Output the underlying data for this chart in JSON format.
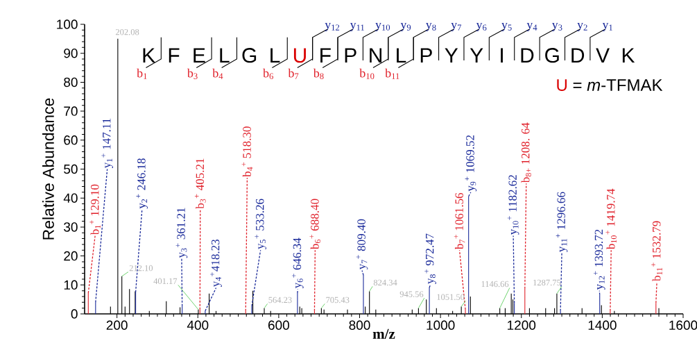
{
  "chart_data": {
    "type": "bar",
    "xlabel": "m/z",
    "ylabel": "Relative Abundance",
    "xlim": [
      120,
      1600
    ],
    "xticks": [
      200,
      400,
      600,
      800,
      1000,
      1200,
      1400,
      1600
    ],
    "ylim": [
      0,
      100
    ],
    "yticks": [
      0,
      10,
      20,
      30,
      40,
      50,
      60,
      70,
      80,
      90,
      100
    ],
    "series": [
      {
        "color": "#000000",
        "x": [
          184,
          202.08,
          212.1,
          220,
          231,
          245,
          280,
          322,
          356,
          401.17,
          428,
          445,
          536,
          564.23,
          580,
          652,
          657,
          705.43,
          712,
          770,
          814,
          824.34,
          840,
          930,
          945.56,
          965,
          990,
          1030,
          1051.5,
          1074,
          1146.66,
          1160,
          1175,
          1179,
          1220,
          1260,
          1282,
          1287.75,
          1350,
          1398,
          1430,
          1540
        ],
        "values": [
          2.5,
          95,
          13,
          2.5,
          8.6,
          7.8,
          1,
          4.4,
          2.3,
          1.5,
          7,
          1,
          8,
          2,
          1,
          2.5,
          2,
          2,
          1.5,
          1.5,
          2.5,
          7.8,
          1.5,
          1.5,
          2,
          5,
          2,
          1,
          2.5,
          6,
          2,
          2,
          7,
          5,
          2,
          2,
          2,
          7,
          2,
          3,
          1,
          2
        ]
      },
      {
        "color": "#1a2a9a",
        "x": [
          147.11,
          246.18,
          361.21,
          418.23,
          533.26,
          646.34,
          809.4,
          972.47,
          1069.52,
          1182.62,
          1296.66,
          1393.72
        ],
        "values": [
          4,
          7.5,
          2.7,
          1,
          2.7,
          7.2,
          13.4,
          9.1,
          40.6,
          3.8,
          1,
          6.6
        ]
      },
      {
        "color": "#e0202a",
        "x": [
          129.1,
          405.21,
          518.3,
          688.4,
          1061.56,
          1208.64,
          1419.74,
          1532.79
        ],
        "values": [
          7.2,
          1.5,
          1,
          1,
          1.5,
          8.7,
          1,
          3.8
        ]
      }
    ],
    "annotations": [
      "K",
      "F",
      "E",
      "L",
      "G",
      "L",
      "U",
      "F",
      "P",
      "N",
      "L",
      "P",
      "Y",
      "Y",
      "I",
      "D",
      "G",
      "D",
      "V",
      "K",
      "U",
      "= *m*-TFMAK",
      "y$_{12}$",
      "y$_{11}$",
      "y$_{10}$",
      "y$_{9}$",
      "y$_{8}$",
      "y$_{7}$",
      "y$_{6}$",
      "y$_{5}$",
      "y$_{4}$",
      "y$_{3}$",
      "y$_{2}$",
      "y$_{1}$",
      "b$_{1}$",
      "b$_{3}$",
      "b$_{4}$",
      "b$_{6}$",
      "b$_{7}$",
      "b$_{8}$",
      "b$_{10}$",
      "b$_{11}$",
      {
        "text": "b$_{1}$$^{+}$ 129.10",
        "x": 129.1,
        "y": 7.2
      },
      {
        "text": "y$_{1}$$^{+}$ 147.11",
        "x": 147.11,
        "y": 4
      },
      {
        "text": "y$_{2}$$^{+}$ 246.18",
        "x": 246.18,
        "y": 7.5
      },
      {
        "text": "y$_{3}$$^{+}$ 361.21",
        "x": 361.21,
        "y": 2.7
      },
      {
        "text": "b$_{3}$$^{+}$ 405.21",
        "x": 405.21,
        "y": 1.5
      },
      {
        "text": "y$_{4}$$^{+}$418.23",
        "x": 418.23,
        "y": 1
      },
      {
        "text": "b$_{4}$$^{+}$ 518.30",
        "x": 518.3,
        "y": 1
      },
      {
        "text": "y$_{5}$$^{+}$ 533.26",
        "x": 533.26,
        "y": 2.7
      },
      {
        "text": "y$_{6}$$^{+}$ 646.34",
        "x": 646.34,
        "y": 7.2
      },
      {
        "text": "b$_{6}$$^{+}$ 688.40",
        "x": 688.4,
        "y": 1
      },
      {
        "text": "y$_{7}$$^{+}$ 809.40",
        "x": 809.4,
        "y": 13.4
      },
      {
        "text": "y$_{8}$$^{+}$ 972.47",
        "x": 972.47,
        "y": 9.1
      },
      {
        "text": "b$_{7}$$^{+}$ 1061.56",
        "x": 1061.56,
        "y": 1.5
      },
      {
        "text": "y$_{9}$$^{+}$ 1069.52",
        "x": 1069.52,
        "y": 40.6
      },
      {
        "text": "y$_{10}$$^{+}$ 1182.62",
        "x": 1182.62,
        "y": 3.8
      },
      {
        "text": "b$_{8+}$ 1208. 64",
        "x": 1208.64,
        "y": 8.7
      },
      {
        "text": "y$_{11}$$^{+}$ 1296.66",
        "x": 1296.66,
        "y": 1
      },
      {
        "text": "y$_{12}$$^{+}$ 1393.72",
        "x": 1393.72,
        "y": 6.6
      },
      {
        "text": "b$_{10}$$^{+}$ 1419.74",
        "x": 1419.74,
        "y": 1
      },
      {
        "text": "b$_{11}$$^{+}$ 1532.79",
        "x": 1532.79,
        "y": 3.8
      },
      {
        "text": "202.08",
        "x": 202.08,
        "y": 95
      },
      {
        "text": "212.10",
        "x": 212.1,
        "y": 13
      },
      {
        "text": "401.17",
        "x": 401.17,
        "y": 1.5
      },
      {
        "text": "564.23",
        "x": 564.23,
        "y": 2
      },
      {
        "text": "705.43",
        "x": 705.43,
        "y": 2
      },
      {
        "text": "824.34",
        "x": 824.34,
        "y": 7.8
      },
      {
        "text": "945.56",
        "x": 945.56,
        "y": 2
      },
      {
        "text": "1051.50",
        "x": 1051.5,
        "y": 2.5
      },
      {
        "text": "1146.66",
        "x": 1146.66,
        "y": 2
      },
      {
        "text": "1287.75",
        "x": 1287.75,
        "y": 7
      }
    ]
  }
}
